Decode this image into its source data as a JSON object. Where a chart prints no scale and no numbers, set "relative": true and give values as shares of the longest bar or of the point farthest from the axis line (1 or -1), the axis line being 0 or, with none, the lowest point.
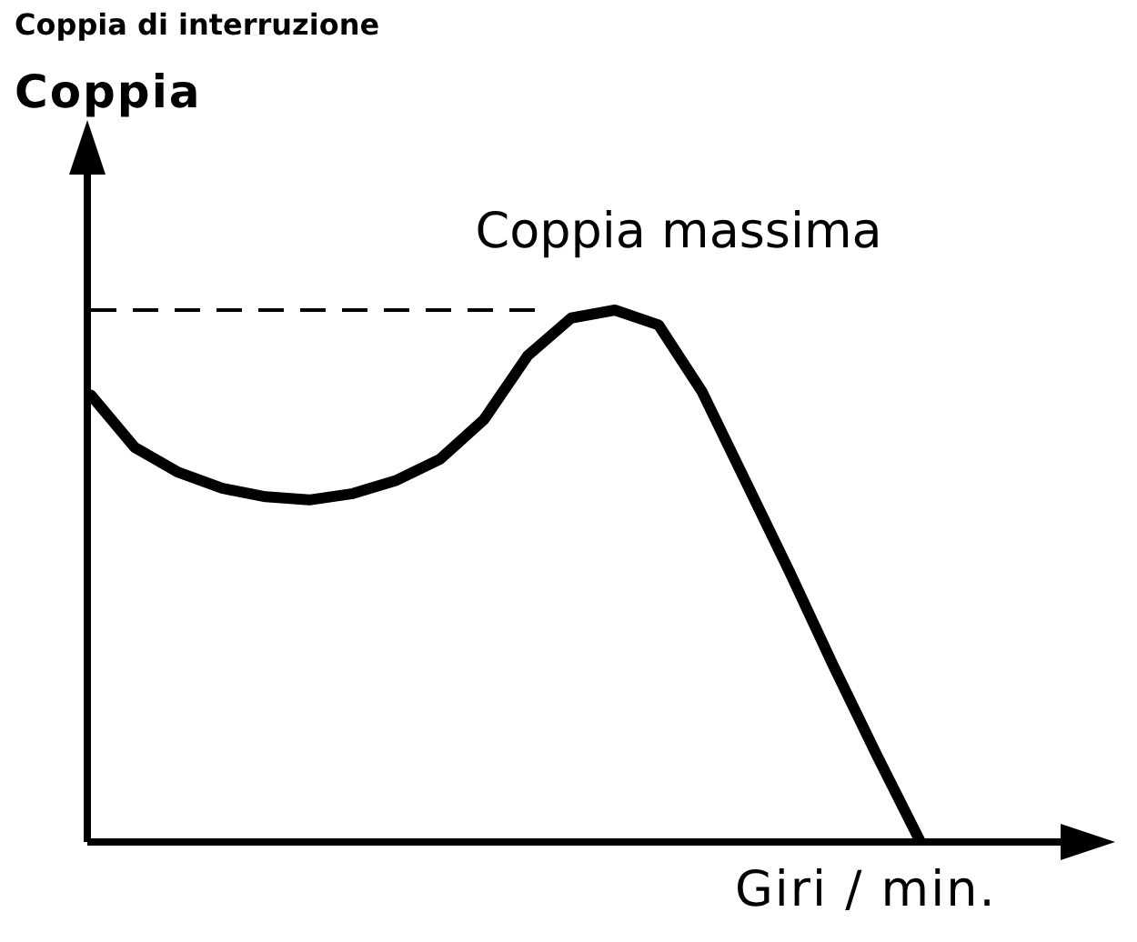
{
  "chart_data": {
    "type": "line",
    "title": "Coppia di interruzione",
    "ylabel": "Coppia",
    "xlabel": "Giri / min.",
    "relative": true,
    "categories": [
      null,
      null,
      null,
      null,
      null,
      null,
      null,
      null,
      null,
      null,
      null,
      null,
      null,
      null,
      null,
      null,
      null,
      null,
      null,
      null
    ],
    "series": [
      {
        "color": "#000000",
        "values": [
          0.84,
          0.742,
          0.695,
          0.665,
          0.649,
          0.643,
          0.655,
          0.68,
          0.72,
          0.794,
          0.914,
          0.985,
          1,
          0.972,
          0.846,
          0.677,
          0.508,
          0.332,
          0.163,
          0
        ]
      }
    ],
    "ref_lines": [
      {
        "axis": "y",
        "value": 1,
        "label": "Coppia massima",
        "line_style": "dashed",
        "color": "#000000"
      }
    ],
    "legend": false,
    "marker": "none",
    "line_style": "solid"
  }
}
